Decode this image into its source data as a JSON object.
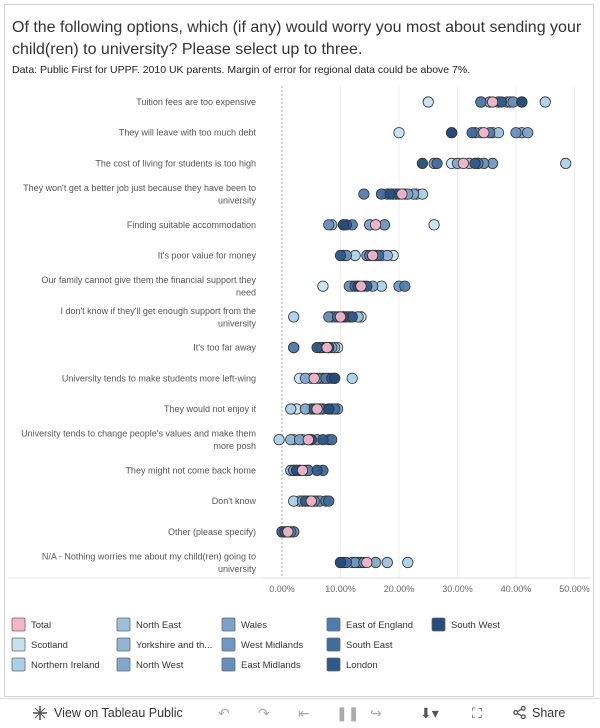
{
  "header": {
    "title": "Of the following options, which (if any) would worry you most about sending your child(ren) to university? Please select up to three.",
    "subtitle": "Data: Public First for UPPF. 2010 UK parents. Margin of error for regional data could be above 7%."
  },
  "chart_data": {
    "type": "scatter",
    "orientation": "dot-plot",
    "xlim": [
      -0.03,
      0.505
    ],
    "xticks": [
      0,
      0.1,
      0.2,
      0.3,
      0.4,
      0.5
    ],
    "xtick_labels": [
      "0.00%",
      "10.00%",
      "20.00%",
      "30.00%",
      "40.00%",
      "50.00%"
    ],
    "categories": [
      [
        "Tuition fees are too expensive"
      ],
      [
        "They will leave with too much debt"
      ],
      [
        "The cost of living for students is too high"
      ],
      [
        "They won't get a better job just because they have been to",
        "university"
      ],
      [
        "Finding suitable accommodation"
      ],
      [
        "It's poor value for money"
      ],
      [
        "Our family cannot give them the financial support they",
        "need"
      ],
      [
        "I don't know if they'll get enough support from the",
        "university"
      ],
      [
        "It's too far away"
      ],
      [
        "University tends to make students more left-wing"
      ],
      [
        "They would not enjoy it"
      ],
      [
        "University tends to change people's values and make them",
        "more posh"
      ],
      [
        "They might not come back home"
      ],
      [
        "Don't know"
      ],
      [
        "Other (please specify)"
      ],
      [
        "N/A - Nothing worries me about my child(ren) going to",
        "university"
      ]
    ],
    "series": [
      {
        "name": "Total",
        "color": "#f4b6c6",
        "values": [
          0.36,
          0.345,
          0.31,
          0.205,
          0.16,
          0.155,
          0.135,
          0.1,
          0.077,
          0.055,
          0.06,
          0.045,
          0.035,
          0.05,
          0.01,
          0.145
        ]
      },
      {
        "name": "Scotland",
        "color": "#c5e1f0",
        "values": [
          0.25,
          0.2,
          0.29,
          0.23,
          0.26,
          0.19,
          0.07,
          0.135,
          0.095,
          0.03,
          0.025,
          0.02,
          0.03,
          0.03,
          0.0,
          0.12
        ]
      },
      {
        "name": "Northern Ireland",
        "color": "#a9d2ea",
        "values": [
          0.45,
          0.36,
          0.485,
          0.24,
          0.15,
          0.125,
          0.17,
          0.02,
          0.02,
          0.12,
          0.015,
          -0.005,
          0.02,
          0.02,
          0.005,
          0.215
        ]
      },
      {
        "name": "North East",
        "color": "#9cbfde",
        "values": [
          0.385,
          0.37,
          0.32,
          0.21,
          0.175,
          0.17,
          0.12,
          0.13,
          0.09,
          0.05,
          0.085,
          0.035,
          0.025,
          0.045,
          0.015,
          0.18
        ]
      },
      {
        "name": "Yorkshire and the Humber",
        "color": "#8fb5d8",
        "values": [
          0.355,
          0.34,
          0.335,
          0.195,
          0.085,
          0.18,
          0.14,
          0.085,
          0.07,
          0.07,
          0.05,
          0.015,
          0.015,
          0.04,
          0.02,
          0.13
        ]
      },
      {
        "name": "North West",
        "color": "#80a9d0",
        "values": [
          0.37,
          0.41,
          0.3,
          0.225,
          0.16,
          0.105,
          0.13,
          0.115,
          0.085,
          0.04,
          0.04,
          0.05,
          0.04,
          0.06,
          0.01,
          0.16
        ]
      },
      {
        "name": "Wales",
        "color": "#7aa3cb",
        "values": [
          0.39,
          0.42,
          0.26,
          0.215,
          0.15,
          0.16,
          0.155,
          0.09,
          0.065,
          0.065,
          0.095,
          0.03,
          0.045,
          0.035,
          0.0,
          0.135
        ]
      },
      {
        "name": "West Midlands",
        "color": "#6f98c2",
        "values": [
          0.34,
          0.33,
          0.36,
          0.18,
          0.175,
          0.145,
          0.2,
          0.11,
          0.08,
          0.08,
          0.07,
          0.06,
          0.03,
          0.065,
          0.01,
          0.125
        ]
      },
      {
        "name": "East Midlands",
        "color": "#6690bc",
        "values": [
          0.395,
          0.4,
          0.345,
          0.19,
          0.08,
          0.11,
          0.115,
          0.08,
          0.065,
          0.06,
          0.065,
          0.045,
          0.02,
          0.055,
          0.02,
          0.14
        ]
      },
      {
        "name": "East of England",
        "color": "#4f7cae",
        "values": [
          0.34,
          0.355,
          0.335,
          0.14,
          0.12,
          0.15,
          0.21,
          0.105,
          0.02,
          0.075,
          0.08,
          0.08,
          0.045,
          0.075,
          0.015,
          0.105
        ]
      },
      {
        "name": "South East",
        "color": "#3f6d9f",
        "values": [
          0.41,
          0.325,
          0.265,
          0.17,
          0.105,
          0.165,
          0.125,
          0.095,
          0.075,
          0.09,
          0.09,
          0.085,
          0.07,
          0.08,
          0.0,
          0.11
        ]
      },
      {
        "name": "London",
        "color": "#2e5888",
        "values": [
          0.375,
          0.29,
          0.33,
          0.2,
          0.11,
          0.1,
          0.145,
          0.12,
          0.06,
          0.085,
          0.055,
          0.07,
          0.06,
          0.04,
          0.005,
          0.1
        ]
      },
      {
        "name": "South West",
        "color": "#244c7c",
        "values": [
          0.41,
          0.29,
          0.24,
          0.185,
          0.105,
          0.155,
          0.13,
          0.105,
          0.08,
          0.09,
          0.08,
          0.05,
          0.025,
          0.05,
          0.01,
          0.1
        ]
      }
    ],
    "legend_position": "bottom",
    "grid": true
  },
  "footer": {
    "view_label": "View on Tableau Public",
    "share_label": "Share"
  }
}
